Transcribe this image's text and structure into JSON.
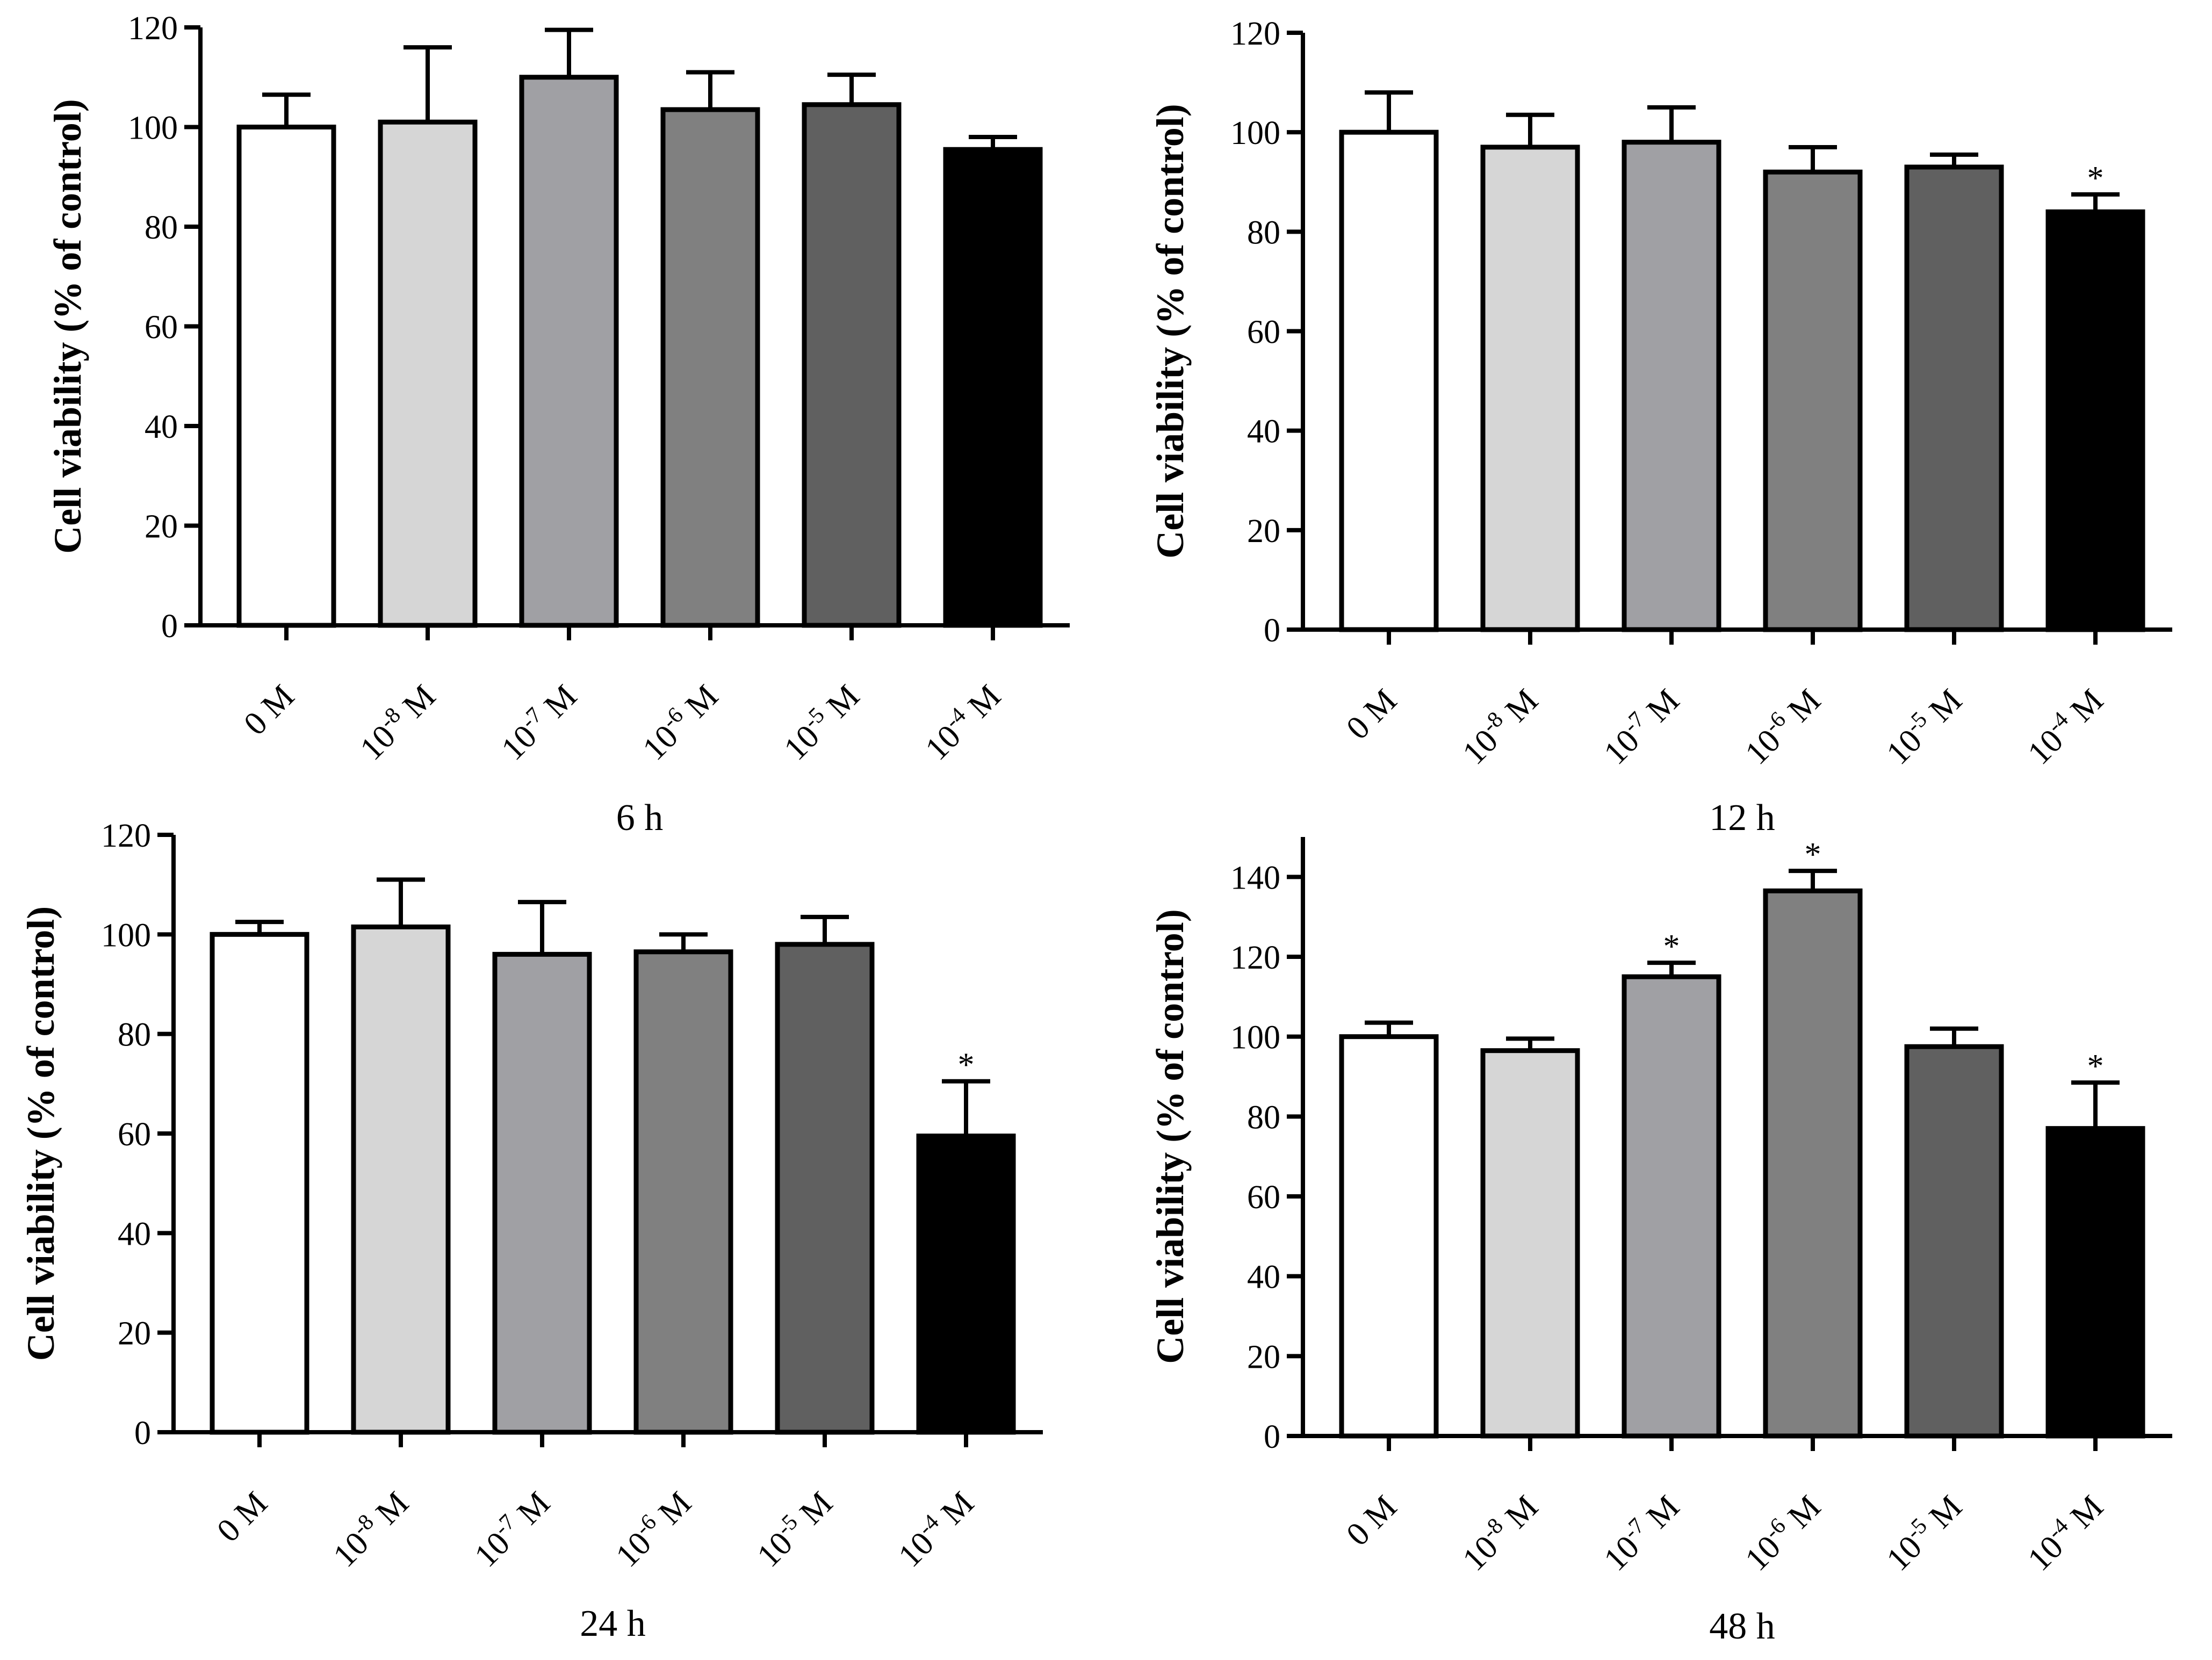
{
  "chart_data": [
    {
      "type": "bar",
      "title": "6 h",
      "ylabel": "Cell viability (% of control)",
      "xlabel": "",
      "ylim": [
        0,
        120
      ],
      "yticks": [
        0,
        20,
        40,
        60,
        80,
        100,
        120
      ],
      "categories": [
        {
          "base": "0 M",
          "exp": ""
        },
        {
          "base": "10",
          "exp": "-8",
          "unit": " M"
        },
        {
          "base": "10",
          "exp": "-7",
          "unit": " M"
        },
        {
          "base": "10",
          "exp": "-6",
          "unit": " M"
        },
        {
          "base": "10",
          "exp": "-5",
          "unit": " M"
        },
        {
          "base": "10",
          "exp": "-4",
          "unit": " M"
        }
      ],
      "values": [
        100,
        101,
        110,
        103.5,
        104.5,
        95.5
      ],
      "errors": [
        6.5,
        15,
        9.5,
        7.5,
        6,
        2.5
      ],
      "significance": [
        "",
        "",
        "",
        "",
        "",
        ""
      ],
      "bar_colors": [
        "#ffffff",
        "#d6d6d6",
        "#a0a0a4",
        "#808080",
        "#606060",
        "#000000"
      ]
    },
    {
      "type": "bar",
      "title": "12 h",
      "ylabel": "Cell viability (% of control)",
      "xlabel": "",
      "ylim": [
        0,
        120
      ],
      "yticks": [
        0,
        20,
        40,
        60,
        80,
        100,
        120
      ],
      "categories": [
        {
          "base": "0 M",
          "exp": ""
        },
        {
          "base": "10",
          "exp": "-8",
          "unit": " M"
        },
        {
          "base": "10",
          "exp": "-7",
          "unit": " M"
        },
        {
          "base": "10",
          "exp": "-6",
          "unit": " M"
        },
        {
          "base": "10",
          "exp": "-5",
          "unit": " M"
        },
        {
          "base": "10",
          "exp": "-4",
          "unit": " M"
        }
      ],
      "values": [
        100,
        97,
        98,
        92,
        93,
        84
      ],
      "errors": [
        8,
        6.5,
        7,
        5,
        2.5,
        3.5
      ],
      "significance": [
        "",
        "",
        "",
        "",
        "",
        "*"
      ],
      "bar_colors": [
        "#ffffff",
        "#d6d6d6",
        "#a0a0a4",
        "#808080",
        "#606060",
        "#000000"
      ]
    },
    {
      "type": "bar",
      "title": "24 h",
      "ylabel": "Cell viability (% of control)",
      "xlabel": "",
      "ylim": [
        0,
        120
      ],
      "yticks": [
        0,
        20,
        40,
        60,
        80,
        100,
        120
      ],
      "categories": [
        {
          "base": "0 M",
          "exp": ""
        },
        {
          "base": "10",
          "exp": "-8",
          "unit": " M"
        },
        {
          "base": "10",
          "exp": "-7",
          "unit": " M"
        },
        {
          "base": "10",
          "exp": "-6",
          "unit": " M"
        },
        {
          "base": "10",
          "exp": "-5",
          "unit": " M"
        },
        {
          "base": "10",
          "exp": "-4",
          "unit": " M"
        }
      ],
      "values": [
        100,
        101.5,
        96,
        96.5,
        98,
        59.5
      ],
      "errors": [
        2.5,
        9.5,
        10.5,
        3.5,
        5.5,
        11
      ],
      "significance": [
        "",
        "",
        "",
        "",
        "",
        "*"
      ],
      "bar_colors": [
        "#ffffff",
        "#d6d6d6",
        "#a0a0a4",
        "#808080",
        "#606060",
        "#000000"
      ]
    },
    {
      "type": "bar",
      "title": "48 h",
      "ylabel": "Cell viability (% of control)",
      "xlabel": "",
      "ylim": [
        0,
        150
      ],
      "yticks": [
        0,
        20,
        40,
        60,
        80,
        100,
        120,
        140
      ],
      "categories": [
        {
          "base": "0 M",
          "exp": ""
        },
        {
          "base": "10",
          "exp": "-8",
          "unit": " M"
        },
        {
          "base": "10",
          "exp": "-7",
          "unit": " M"
        },
        {
          "base": "10",
          "exp": "-6",
          "unit": " M"
        },
        {
          "base": "10",
          "exp": "-5",
          "unit": " M"
        },
        {
          "base": "10",
          "exp": "-4",
          "unit": " M"
        }
      ],
      "values": [
        100,
        96.5,
        115,
        136.5,
        97.5,
        77
      ],
      "errors": [
        3.5,
        3,
        3.5,
        5,
        4.5,
        11.5
      ],
      "significance": [
        "",
        "",
        "*",
        "*",
        "",
        "*"
      ],
      "bar_colors": [
        "#ffffff",
        "#d6d6d6",
        "#a0a0a4",
        "#808080",
        "#606060",
        "#000000"
      ]
    }
  ]
}
